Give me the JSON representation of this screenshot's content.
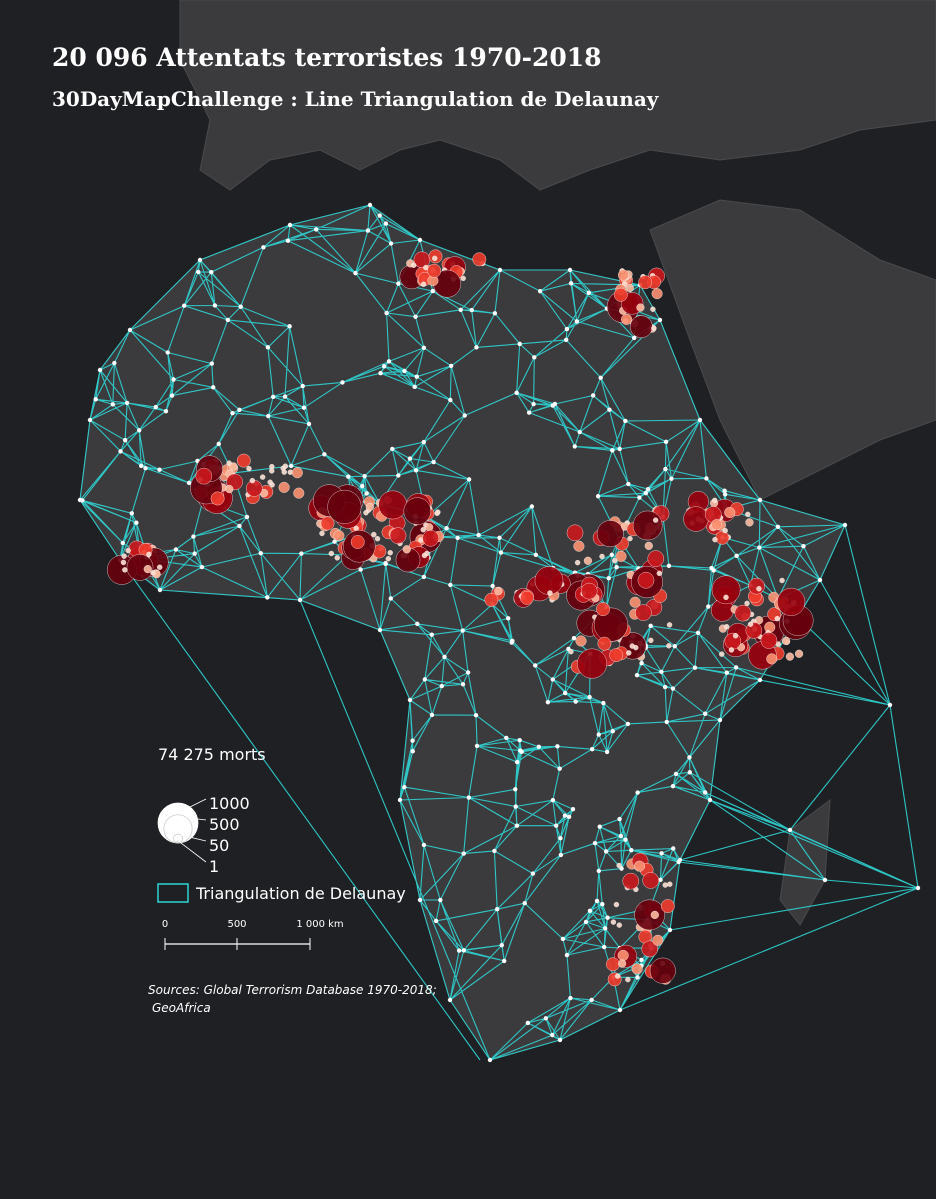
{
  "header": {
    "title": "20 096 Attentats terroristes 1970-2018",
    "subtitle": "30DayMapChallenge : Line Triangulation de Delaunay"
  },
  "legend": {
    "total": "74 275 morts",
    "sizes": [
      1000,
      500,
      50,
      1
    ],
    "line_label": "Triangulation de Delaunay"
  },
  "scale_bar": {
    "labels": [
      "0",
      "500",
      "1 000 km"
    ]
  },
  "sources": [
    "Sources: Global Terrorism Database 1970-2018;",
    "GeoAfrica"
  ]
}
